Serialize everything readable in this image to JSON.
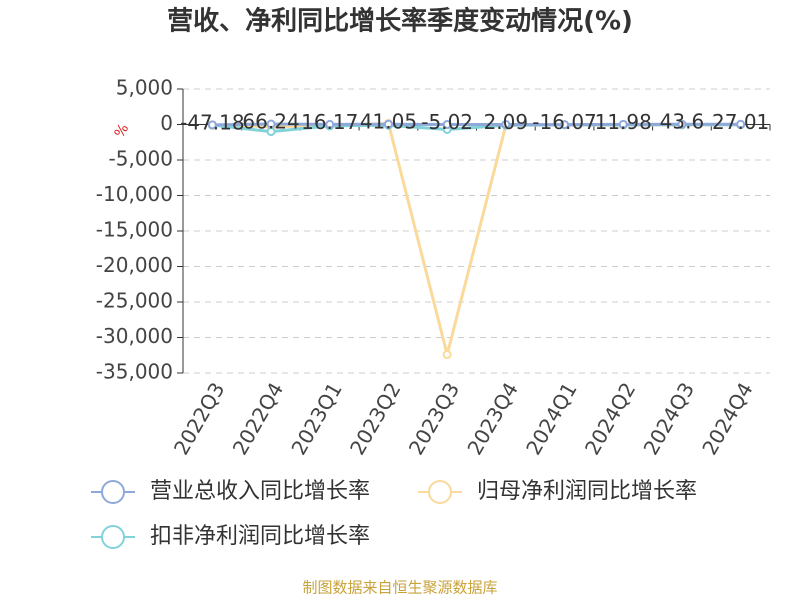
{
  "chart_data": {
    "type": "line",
    "title": "营收、净利同比增长率季度变动情况(%)",
    "y_label": "%",
    "source": "制图数据来自恒生聚源数据库",
    "categories": [
      "2022Q3",
      "2022Q4",
      "2023Q1",
      "2023Q2",
      "2023Q3",
      "2023Q4",
      "2024Q1",
      "2024Q2",
      "2024Q3",
      "2024Q4"
    ],
    "series": [
      {
        "name": "营业总收入同比增长率",
        "color": "#8ea9d9",
        "values": [
          -47.18,
          66.24,
          16.17,
          41.05,
          -5.02,
          2.09,
          -16.07,
          11.98,
          43.6,
          27.01
        ]
      },
      {
        "name": "归母净利润同比增长率",
        "color": "#fbd99b",
        "values": [
          -120,
          -300,
          -200,
          150,
          -32400,
          -100,
          -50,
          -80,
          -60,
          -40
        ]
      },
      {
        "name": "扣非净利润同比增长率",
        "color": "#82d2d9",
        "values": [
          -80,
          -1000,
          -200,
          -100,
          -700,
          -100,
          -50,
          -60,
          -40,
          -30
        ]
      }
    ],
    "ylim": [
      -35000,
      5000
    ],
    "yticks": [
      {
        "value": 5000,
        "label": "5,000"
      },
      0,
      {
        "value": -5000,
        "label": "-5,000"
      },
      {
        "value": -10000,
        "label": "-10,000"
      },
      {
        "value": -15000,
        "label": "-15,000"
      },
      {
        "value": -20000,
        "label": "-20,000"
      },
      {
        "value": -25000,
        "label": "-25,000"
      },
      {
        "value": -30000,
        "label": "-30,000"
      },
      {
        "value": -35000,
        "label": "-35,000"
      }
    ],
    "grid": true
  }
}
